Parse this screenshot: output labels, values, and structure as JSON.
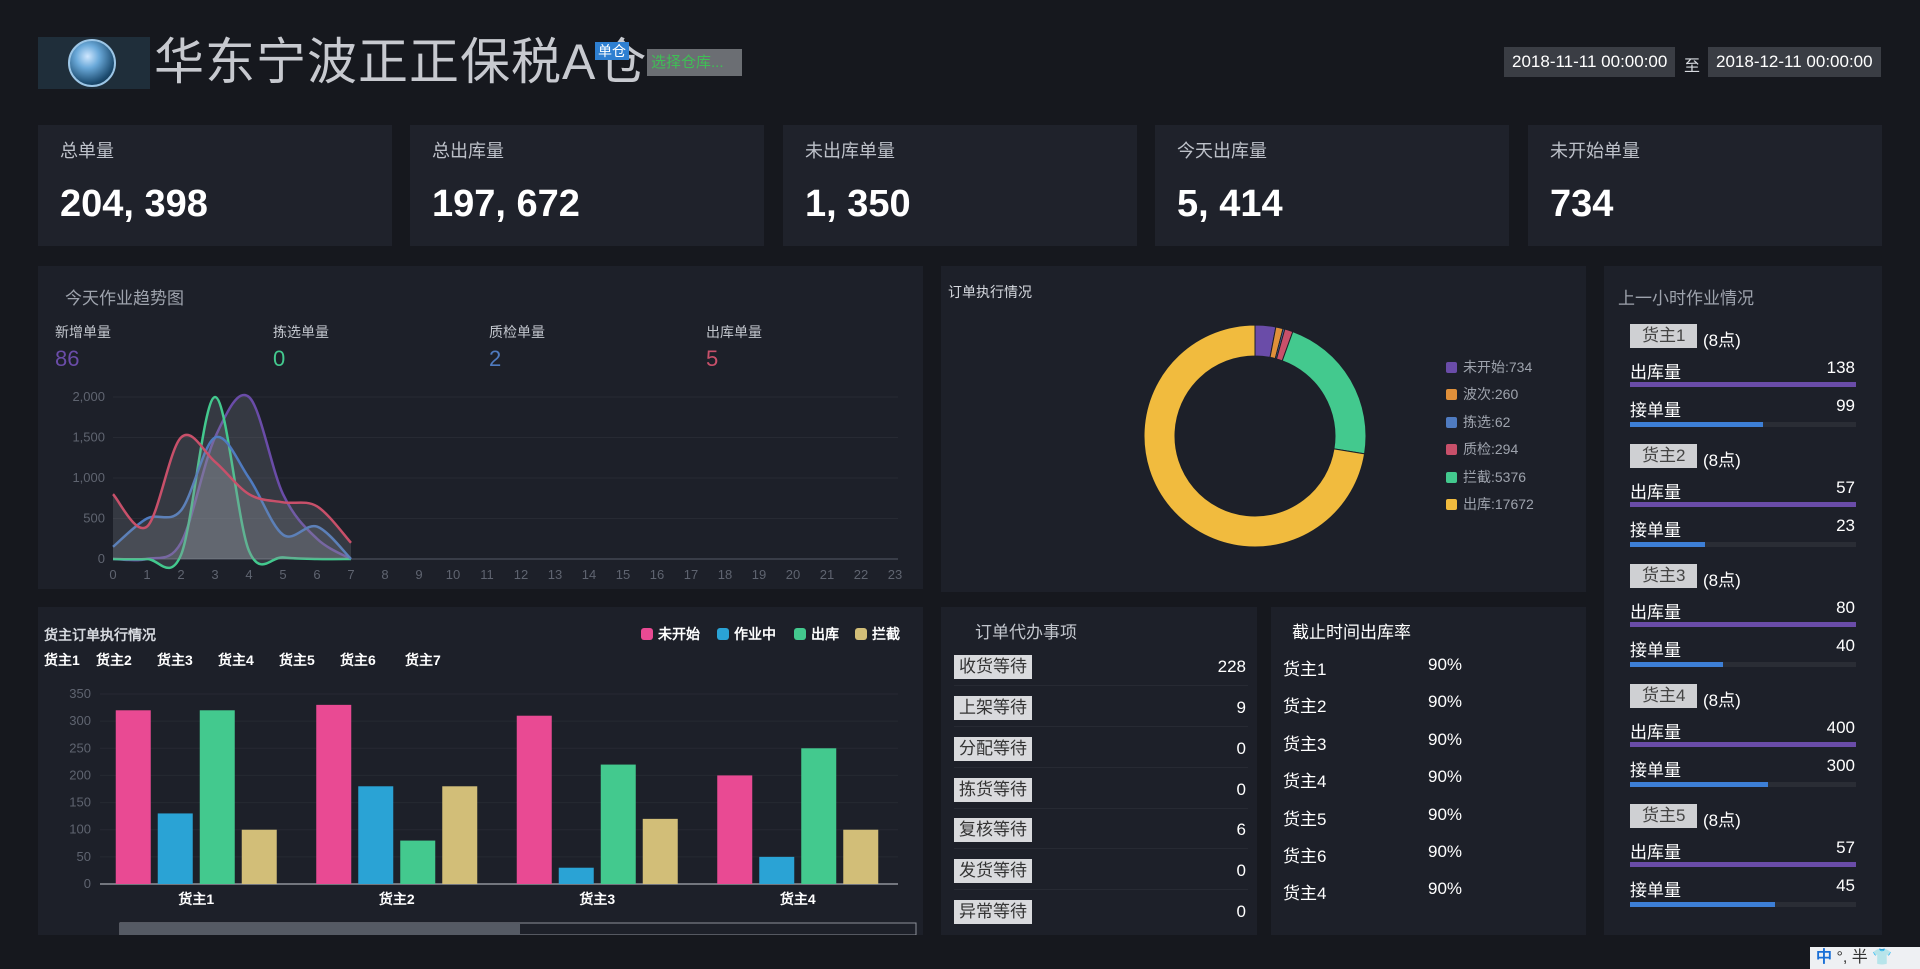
{
  "header": {
    "title": "华东宁波正正保税A仓",
    "badge": "单仓",
    "warehouse_select": "选择仓库...",
    "date_from": "2018-11-11 00:00:00",
    "date_sep": "至",
    "date_to": "2018-12-11 00:00:00"
  },
  "stats": [
    {
      "label": "总单量",
      "value": "204, 398"
    },
    {
      "label": "总出库量",
      "value": "197, 672"
    },
    {
      "label": "未出库单量",
      "value": "1, 350"
    },
    {
      "label": "今天出库量",
      "value": "5, 414"
    },
    {
      "label": "未开始单量",
      "value": "734"
    }
  ],
  "trend": {
    "title": "今天作业趋势图",
    "metrics": [
      {
        "label": "新增单量",
        "value": "86",
        "color": "#6a4ca8"
      },
      {
        "label": "拣选单量",
        "value": "0",
        "color": "#43c98e"
      },
      {
        "label": "质检单量",
        "value": "2",
        "color": "#4f7bc0"
      },
      {
        "label": "出库单量",
        "value": "5",
        "color": "#c8506a"
      }
    ]
  },
  "donut": {
    "title": "订单执行情况",
    "legend": [
      {
        "label": "未开始:734",
        "color": "#6a4ca8"
      },
      {
        "label": "波次:260",
        "color": "#e0903a"
      },
      {
        "label": "拣选:62",
        "color": "#4f7bc0"
      },
      {
        "label": "质检:294",
        "color": "#c8506a"
      },
      {
        "label": "拦截:5376",
        "color": "#43c98e"
      },
      {
        "label": "出库:17672",
        "color": "#f1bb3e"
      }
    ]
  },
  "owner_chart": {
    "title": "货主订单执行情况",
    "owner_list": [
      "货主1",
      "货主2",
      "货主3",
      "货主4",
      "货主5",
      "货主6",
      "货主7"
    ],
    "legend": [
      {
        "label": "未开始",
        "color": "#e94a93"
      },
      {
        "label": "作业中",
        "color": "#2aa3d5"
      },
      {
        "label": "出库",
        "color": "#43c98e"
      },
      {
        "label": "拦截",
        "color": "#d2be78"
      }
    ]
  },
  "todo": {
    "title": "订单代办事项",
    "items": [
      {
        "label": "收货等待",
        "count": "228"
      },
      {
        "label": "上架等待",
        "count": "9"
      },
      {
        "label": "分配等待",
        "count": "0"
      },
      {
        "label": "拣货等待",
        "count": "0"
      },
      {
        "label": "复核等待",
        "count": "6"
      },
      {
        "label": "发货等待",
        "count": "0"
      },
      {
        "label": "异常等待",
        "count": "0"
      }
    ]
  },
  "rate": {
    "title": "截止时间出库率",
    "items": [
      {
        "owner": "货主1",
        "pct": "90%"
      },
      {
        "owner": "货主2",
        "pct": "90%"
      },
      {
        "owner": "货主3",
        "pct": "90%"
      },
      {
        "owner": "货主4",
        "pct": "90%"
      },
      {
        "owner": "货主5",
        "pct": "90%"
      },
      {
        "owner": "货主6",
        "pct": "90%"
      },
      {
        "owner": "货主4",
        "pct": "90%"
      }
    ]
  },
  "last_hour": {
    "title": "上一小时作业情况",
    "out_label": "出库量",
    "recv_label": "接单量",
    "owners": [
      {
        "name": "货主1",
        "hour": "(8点)",
        "out": "138",
        "recv": "99",
        "out_frac": 1.0,
        "recv_frac": 0.59
      },
      {
        "name": "货主2",
        "hour": "(8点)",
        "out": "57",
        "recv": "23",
        "out_frac": 1.0,
        "recv_frac": 0.33
      },
      {
        "name": "货主3",
        "hour": "(8点)",
        "out": "80",
        "recv": "40",
        "out_frac": 1.0,
        "recv_frac": 0.41
      },
      {
        "name": "货主4",
        "hour": "(8点)",
        "out": "400",
        "recv": "300",
        "out_frac": 1.0,
        "recv_frac": 0.61
      },
      {
        "name": "货主5",
        "hour": "(8点)",
        "out": "57",
        "recv": "45",
        "out_frac": 1.0,
        "recv_frac": 0.64
      }
    ]
  },
  "ime": {
    "lang": "中",
    "mode": "°, 半"
  },
  "chart_data": [
    {
      "type": "area",
      "title": "今天作业趋势图",
      "x": [
        0,
        1,
        2,
        3,
        4,
        5,
        6,
        7
      ],
      "x_ticks": [
        "0",
        "1",
        "2",
        "3",
        "4",
        "5",
        "6",
        "7",
        "8",
        "9",
        "10",
        "11",
        "12",
        "13",
        "14",
        "15",
        "16",
        "17",
        "18",
        "19",
        "20",
        "21",
        "22",
        "23"
      ],
      "y_ticks": [
        "0",
        "500",
        "1,000",
        "1,500",
        "2,000"
      ],
      "ylim": [
        0,
        2000
      ],
      "series": [
        {
          "name": "新增单量",
          "color": "#6a4ca8",
          "values": [
            0,
            0,
            200,
            1500,
            2000,
            800,
            250,
            0
          ]
        },
        {
          "name": "拣选单量",
          "color": "#43c98e",
          "values": [
            0,
            0,
            50,
            2000,
            100,
            20,
            0,
            0
          ]
        },
        {
          "name": "质检单量",
          "color": "#4f7bc0",
          "values": [
            150,
            500,
            600,
            1500,
            1000,
            300,
            400,
            0
          ]
        },
        {
          "name": "出库单量",
          "color": "#c8506a",
          "values": [
            800,
            400,
            1500,
            1200,
            800,
            700,
            650,
            200
          ]
        }
      ]
    },
    {
      "type": "pie",
      "title": "订单执行情况",
      "labels": [
        "未开始",
        "波次",
        "拣选",
        "质检",
        "拦截",
        "出库"
      ],
      "values": [
        734,
        260,
        62,
        294,
        5376,
        17672
      ]
    },
    {
      "type": "bar",
      "title": "货主订单执行情况",
      "categories": [
        "货主1",
        "货主2",
        "货主3",
        "货主4"
      ],
      "y_ticks": [
        "0",
        "50",
        "100",
        "150",
        "200",
        "250",
        "300",
        "350"
      ],
      "ylim": [
        0,
        350
      ],
      "series": [
        {
          "name": "未开始",
          "color": "#e94a93",
          "values": [
            320,
            330,
            310,
            200
          ]
        },
        {
          "name": "作业中",
          "color": "#2aa3d5",
          "values": [
            130,
            180,
            30,
            50
          ]
        },
        {
          "name": "出库",
          "color": "#43c98e",
          "values": [
            320,
            80,
            220,
            250
          ]
        },
        {
          "name": "拦截",
          "color": "#d2be78",
          "values": [
            100,
            180,
            120,
            100
          ]
        }
      ]
    }
  ]
}
